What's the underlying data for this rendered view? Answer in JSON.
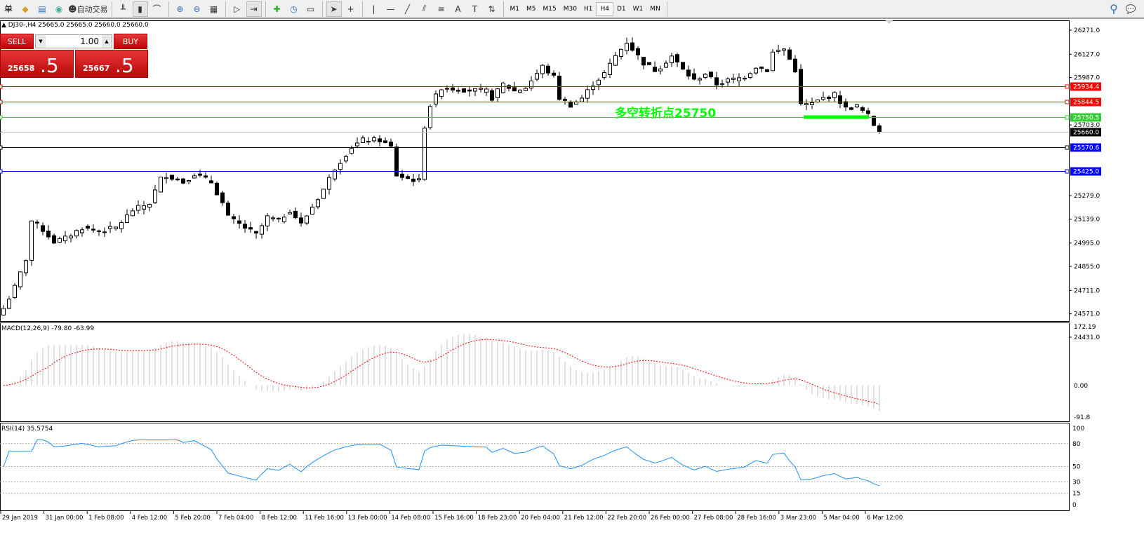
{
  "toolbar": {
    "left_items": [
      {
        "icon": "book-icon",
        "label": "单"
      },
      {
        "icon": "gold-icon"
      },
      {
        "icon": "server-icon"
      },
      {
        "icon": "signal-icon"
      }
    ],
    "autotrade_label": "自动交易",
    "tools": [
      "bar-chart-icon",
      "candle-chart-icon",
      "line-chart-icon",
      "zoom-in-icon",
      "zoom-out-icon",
      "tile-icon",
      "autoscroll-icon",
      "chart-shift-icon",
      "indicators-icon",
      "period-icon",
      "template-icon",
      "cursor-icon",
      "crosshair-icon",
      "vertical-line-icon",
      "horizontal-line-icon",
      "trendline-icon",
      "equidistant-channel-icon",
      "fibonacci-icon",
      "text-icon",
      "text-label-icon",
      "arrows-icon"
    ],
    "timeframes": [
      "M1",
      "M5",
      "M15",
      "M30",
      "H1",
      "H4",
      "D1",
      "W1",
      "MN"
    ],
    "active_timeframe": "H4"
  },
  "symbol_info": "DJ30-,H4  25665.0 25665.0 25660.0 25660.0",
  "trade_panel": {
    "sell_label": "SELL",
    "buy_label": "BUY",
    "volume": "1.00",
    "sell_price_main": "25658",
    "sell_price_big": ".5",
    "buy_price_main": "25667",
    "buy_price_big": ".5"
  },
  "price_axis": {
    "ticks": [
      "26271.0",
      "26127.0",
      "25987.0",
      "25703.0",
      "25279.0",
      "25139.0",
      "24995.0",
      "24855.0",
      "24711.0",
      "24571.0",
      "24431.0"
    ],
    "range": [
      24431,
      26271
    ]
  },
  "levels": [
    {
      "price": 25934.4,
      "label": "25934.4",
      "color": "#ff0000",
      "label_bg": "#ff0000"
    },
    {
      "price": 25844.5,
      "label": "25844.5",
      "color": "#ff0000",
      "label_bg": "#ff0000"
    },
    {
      "price": 25750.5,
      "label": "25750.5",
      "color": "#32cd32",
      "label_bg": "#32cd32"
    },
    {
      "price": 25660.0,
      "label": "25660.0",
      "color": "#c0c0c0",
      "label_bg": "#000000"
    },
    {
      "price": 25570.6,
      "label": "25570.6",
      "color": "#000000",
      "label_bg": "#0000ff"
    },
    {
      "price": 25425.0,
      "label": "25425.0",
      "color": "#0000ff",
      "label_bg": "#0000ff"
    }
  ],
  "annotation": {
    "text": "多空转折点25750",
    "color": "#00ff00",
    "price": 25750
  },
  "price_waypoints": [
    [
      0,
      24604
    ],
    [
      2,
      24730
    ],
    [
      4,
      24898
    ],
    [
      5,
      25128
    ],
    [
      7,
      25074
    ],
    [
      9,
      25003
    ],
    [
      11,
      25024
    ],
    [
      14,
      25087
    ],
    [
      17,
      25066
    ],
    [
      20,
      25087
    ],
    [
      23,
      25192
    ],
    [
      26,
      25234
    ],
    [
      28,
      25381
    ],
    [
      29,
      25402
    ],
    [
      32,
      25360
    ],
    [
      34,
      25410
    ],
    [
      37,
      25360
    ],
    [
      39,
      25234
    ],
    [
      40,
      25150
    ],
    [
      42,
      25108
    ],
    [
      45,
      25045
    ],
    [
      47,
      25150
    ],
    [
      49,
      25129
    ],
    [
      51,
      25192
    ],
    [
      53,
      25108
    ],
    [
      55,
      25213
    ],
    [
      57,
      25318
    ],
    [
      59,
      25444
    ],
    [
      61,
      25528
    ],
    [
      62,
      25570
    ],
    [
      64,
      25612
    ],
    [
      67,
      25612
    ],
    [
      69,
      25570
    ],
    [
      70,
      25402
    ],
    [
      72,
      25381
    ],
    [
      74,
      25368
    ],
    [
      75,
      25696
    ],
    [
      76,
      25822
    ],
    [
      78,
      25927
    ],
    [
      82,
      25914
    ],
    [
      86,
      25906
    ],
    [
      87,
      25864
    ],
    [
      89,
      25948
    ],
    [
      91,
      25906
    ],
    [
      93,
      25927
    ],
    [
      96,
      26053
    ],
    [
      98,
      25990
    ],
    [
      99,
      25864
    ],
    [
      101,
      25822
    ],
    [
      103,
      25864
    ],
    [
      105,
      25948
    ],
    [
      107,
      26011
    ],
    [
      109,
      26116
    ],
    [
      111,
      26200
    ],
    [
      112,
      26158
    ],
    [
      114,
      26074
    ],
    [
      116,
      26032
    ],
    [
      117,
      26053
    ],
    [
      119,
      26116
    ],
    [
      121,
      26032
    ],
    [
      123,
      25969
    ],
    [
      125,
      26011
    ],
    [
      127,
      25948
    ],
    [
      129,
      25969
    ],
    [
      132,
      25990
    ],
    [
      134,
      26053
    ],
    [
      136,
      26032
    ],
    [
      137,
      26137
    ],
    [
      139,
      26158
    ],
    [
      141,
      26032
    ],
    [
      142,
      25822
    ],
    [
      144,
      25830
    ],
    [
      146,
      25864
    ],
    [
      148,
      25885
    ],
    [
      150,
      25801
    ],
    [
      152,
      25814
    ],
    [
      154,
      25759
    ],
    [
      155,
      25704
    ],
    [
      156,
      25660
    ]
  ],
  "macd": {
    "label": "MACD(12,26,9) -79.80 -63.99",
    "ticks": [
      "172.19",
      "0.00",
      "-91.8"
    ],
    "range": [
      -91.8,
      172.19
    ],
    "histogram_color": "#c0c0c0",
    "signal_color": "#ff0000"
  },
  "rsi": {
    "label": "RSI(14) 35.5754",
    "ticks": [
      "100",
      "80",
      "50",
      "30",
      "15",
      "0"
    ],
    "color": "#1e90ff"
  },
  "time_axis": [
    "29 Jan 2019",
    "31 Jan 00:00",
    "1 Feb 08:00",
    "4 Feb 12:00",
    "5 Feb 20:00",
    "7 Feb 04:00",
    "8 Feb 12:00",
    "11 Feb 16:00",
    "13 Feb 00:00",
    "14 Feb 08:00",
    "15 Feb 16:00",
    "18 Feb 23:00",
    "20 Feb 04:00",
    "21 Feb 12:00",
    "22 Feb 20:00",
    "26 Feb 00:00",
    "27 Feb 08:00",
    "28 Feb 16:00",
    "3 Mar 23:00",
    "5 Mar 04:00",
    "6 Mar 12:00"
  ]
}
